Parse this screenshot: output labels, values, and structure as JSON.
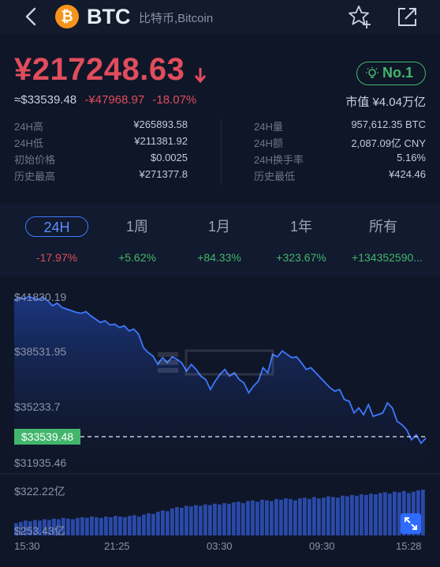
{
  "header": {
    "symbol": "BTC",
    "coin_name": "比特币,Bitcoin",
    "coin_logo_glyph": "₿",
    "icons": [
      "back-arrow-icon",
      "star-icon",
      "share-icon"
    ]
  },
  "quote": {
    "price": "¥217248.63",
    "usd_price": "≈$33539.48",
    "change_amount": "-¥47968.97",
    "change_pct": "-18.07%",
    "rank": "No.1",
    "market_cap": "市值 ¥4.04万亿"
  },
  "stats": {
    "left": [
      {
        "label": "24H高",
        "value": "¥265893.58"
      },
      {
        "label": "24H低",
        "value": "¥211381.92"
      },
      {
        "label": "初始价格",
        "value": "$0.0025"
      },
      {
        "label": "历史最高",
        "value": "¥271377.8"
      }
    ],
    "right": [
      {
        "label": "24H量",
        "value": "957,612.35 BTC"
      },
      {
        "label": "24H额",
        "value": "2,087.09亿 CNY"
      },
      {
        "label": "24H换手率",
        "value": "5.16%"
      },
      {
        "label": "历史最低",
        "value": "¥424.46"
      }
    ]
  },
  "periods": [
    {
      "label": "24H",
      "change": "-17.97%",
      "active": true
    },
    {
      "label": "1周",
      "change": "+5.62%",
      "active": false
    },
    {
      "label": "1月",
      "change": "+84.33%",
      "active": false
    },
    {
      "label": "1年",
      "change": "+323.67%",
      "active": false
    },
    {
      "label": "所有",
      "change": "+134352590...",
      "active": false
    }
  ],
  "chart": {
    "y_labels": [
      "$41830.19",
      "$38531.95",
      "$35233.7",
      "$31935.46"
    ],
    "current_price_tag": "$33539.48",
    "volume_labels": [
      "$322.22亿",
      "$253.43亿"
    ],
    "x_labels": [
      "15:30",
      "21:25",
      "03:30",
      "09:30",
      "15:28"
    ],
    "line_color": "#3f78ff",
    "price_series": [
      41700,
      41900,
      41800,
      41950,
      41850,
      41750,
      41900,
      41700,
      41400,
      41550,
      41300,
      41200,
      41100,
      41000,
      40950,
      41050,
      40800,
      40600,
      40400,
      40500,
      40250,
      40300,
      40100,
      40200,
      39900,
      40000,
      39700,
      38900,
      38600,
      38400,
      37900,
      38300,
      38000,
      38350,
      38200,
      38000,
      37500,
      37900,
      37600,
      37200,
      37000,
      36400,
      36900,
      37300,
      37600,
      37200,
      37400,
      37000,
      36800,
      36200,
      36600,
      36900,
      37700,
      37400,
      38500,
      38350,
      38700,
      38500,
      38300,
      38350,
      38000,
      37600,
      37700,
      37400,
      37100,
      36800,
      36500,
      36300,
      36400,
      35800,
      35700,
      35000,
      35300,
      34900,
      35500,
      34800,
      34900,
      35000,
      35600,
      35300,
      34500,
      34300,
      34000,
      33400,
      33700,
      33200,
      33500
    ],
    "volume_series": [
      18,
      20,
      22,
      21,
      23,
      22,
      24,
      23,
      25,
      24,
      26,
      25,
      24,
      26,
      27,
      26,
      28,
      27,
      26,
      28,
      27,
      29,
      28,
      27,
      29,
      30,
      28,
      31,
      33,
      32,
      35,
      37,
      36,
      40,
      42,
      41,
      44,
      43,
      45,
      44,
      46,
      45,
      47,
      46,
      48,
      47,
      49,
      50,
      48,
      51,
      52,
      50,
      53,
      52,
      51,
      54,
      53,
      55,
      54,
      52,
      55,
      56,
      54,
      57,
      55,
      56,
      58,
      57,
      56,
      59,
      58,
      60,
      59,
      61,
      60,
      62,
      61,
      63,
      64,
      62,
      65,
      64,
      66,
      63,
      65,
      67,
      68
    ]
  }
}
